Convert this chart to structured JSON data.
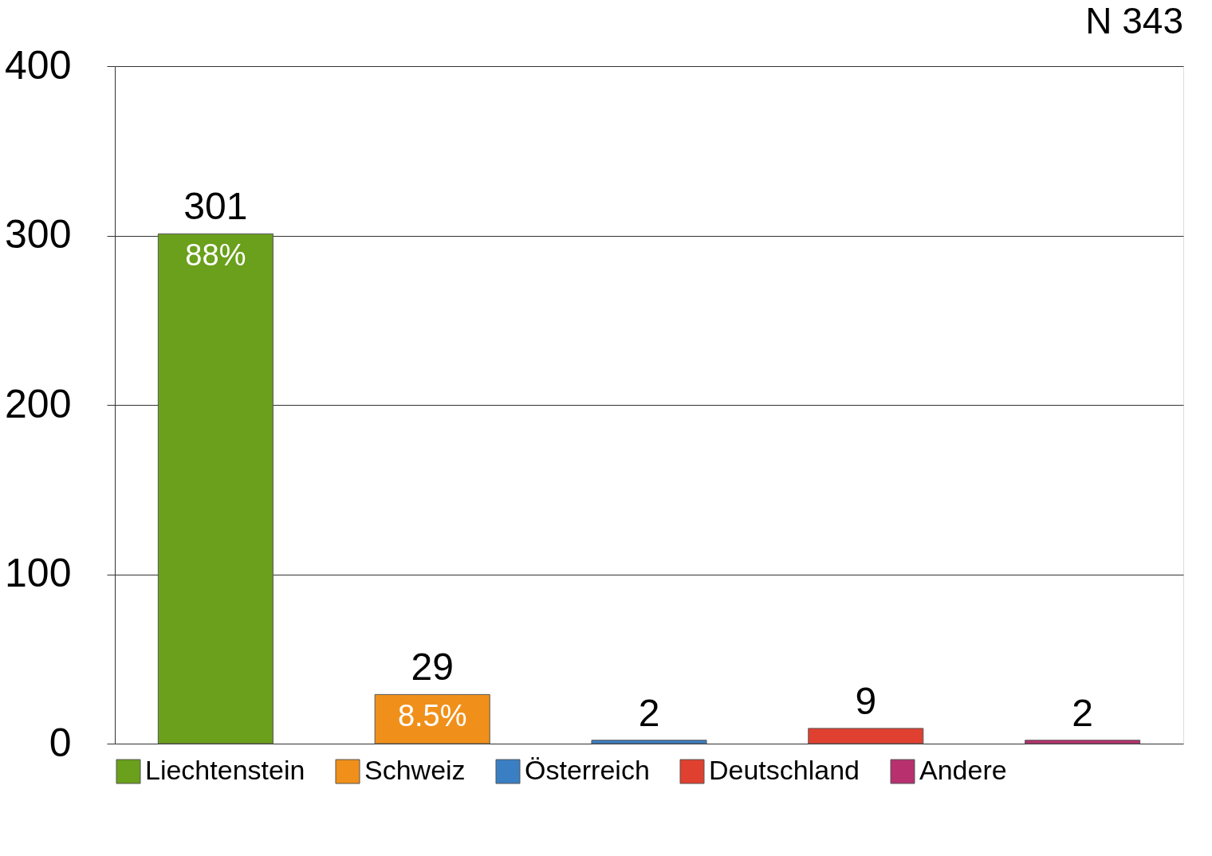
{
  "chart_data": {
    "type": "bar",
    "categories": [
      null,
      null,
      null,
      null,
      null
    ],
    "series": [
      {
        "name": "Liechtenstein",
        "color": "#6aa01c",
        "values": [
          301,
          null,
          null,
          null,
          null
        ]
      },
      {
        "name": "Schweiz",
        "color": "#f0901a",
        "values": [
          null,
          29,
          null,
          null,
          null
        ]
      },
      {
        "name": "Österreich",
        "color": "#3a7fc4",
        "values": [
          null,
          null,
          2,
          null,
          null
        ]
      },
      {
        "name": "Deutschland",
        "color": "#e0402f",
        "values": [
          null,
          null,
          null,
          9,
          null
        ]
      },
      {
        "name": "Andere",
        "color": "#b8306e",
        "values": [
          null,
          null,
          null,
          null,
          2
        ]
      }
    ],
    "ylim": [
      0,
      400
    ],
    "yticks": [
      0,
      100,
      200,
      300,
      400
    ],
    "grid": "y",
    "legend": "bottom",
    "data_labels": true,
    "tick_labels": "y",
    "annotations": [
      "N 343",
      "88%",
      "8.5%"
    ]
  }
}
